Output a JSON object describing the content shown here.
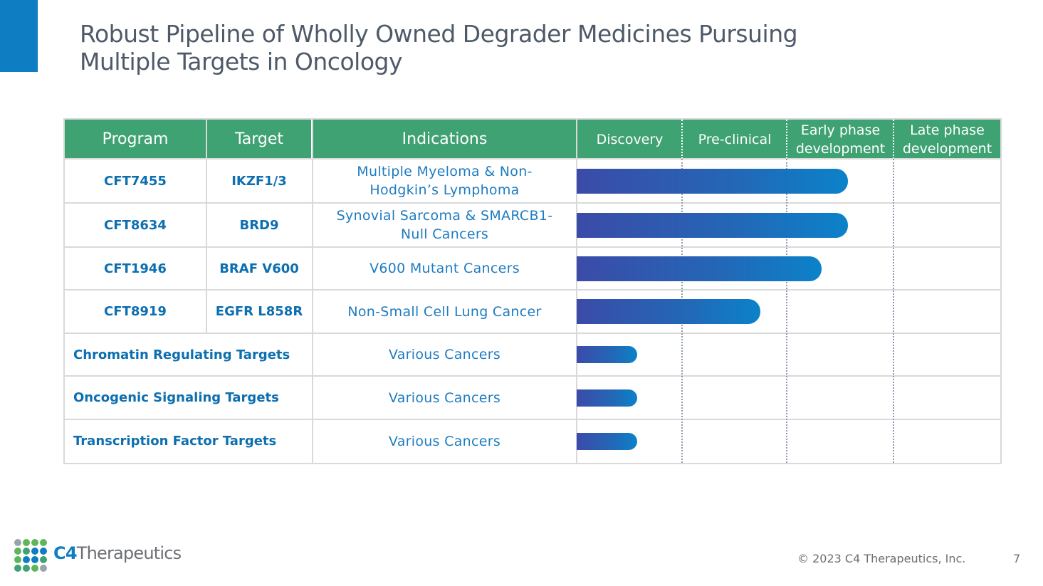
{
  "title": {
    "line1": "Robust Pipeline of Wholly Owned Degrader Medicines Pursuing",
    "line2": "Multiple Targets in Oncology"
  },
  "columns": {
    "program": "Program",
    "target": "Target",
    "indications": "Indications",
    "stages": [
      "Discovery",
      "Pre-clinical",
      "Early phase development",
      "Late phase development"
    ],
    "stage_lines": [
      [
        "Discovery"
      ],
      [
        "Pre-clinical"
      ],
      [
        "Early phase",
        "development"
      ],
      [
        "Late phase",
        "development"
      ]
    ]
  },
  "rows": [
    {
      "program": "CFT7455",
      "target": "IKZF1/3",
      "indication_lines": [
        "Multiple Myeloma & Non-",
        "Hodgkin’s Lymphoma"
      ],
      "progress_stages": 2.56
    },
    {
      "program": "CFT8634",
      "target": "BRD9",
      "indication_lines": [
        "Synovial Sarcoma & SMARCB1-",
        "Null Cancers"
      ],
      "progress_stages": 2.56
    },
    {
      "program": "CFT1946",
      "target": "BRAF V600",
      "indication_lines": [
        "V600 Mutant Cancers"
      ],
      "progress_stages": 2.31
    },
    {
      "program": "CFT8919",
      "target": "EGFR L858R",
      "indication_lines": [
        "Non-Small Cell Lung Cancer"
      ],
      "progress_stages": 1.73
    }
  ],
  "groups": [
    {
      "name": "Chromatin Regulating Targets",
      "indication": "Various Cancers",
      "progress_stages": 0.57
    },
    {
      "name": "Oncogenic Signaling Targets",
      "indication": "Various Cancers",
      "progress_stages": 0.57
    },
    {
      "name": "Transcription Factor Targets",
      "indication": "Various Cancers",
      "progress_stages": 0.57
    }
  ],
  "colors": {
    "header_green": "#3FA273",
    "brand_blue": "#0E7DC2",
    "text_blue": "#0D6FB0",
    "bar_start": "#3B4BA8",
    "bar_end": "#0B82C9"
  },
  "logo": {
    "mark": "C4",
    "word": "Therapeutics",
    "icon": "dot-grid-logo-icon"
  },
  "footer": {
    "copyright": "© 2023 C4 Therapeutics, Inc.",
    "page_number": "7"
  }
}
